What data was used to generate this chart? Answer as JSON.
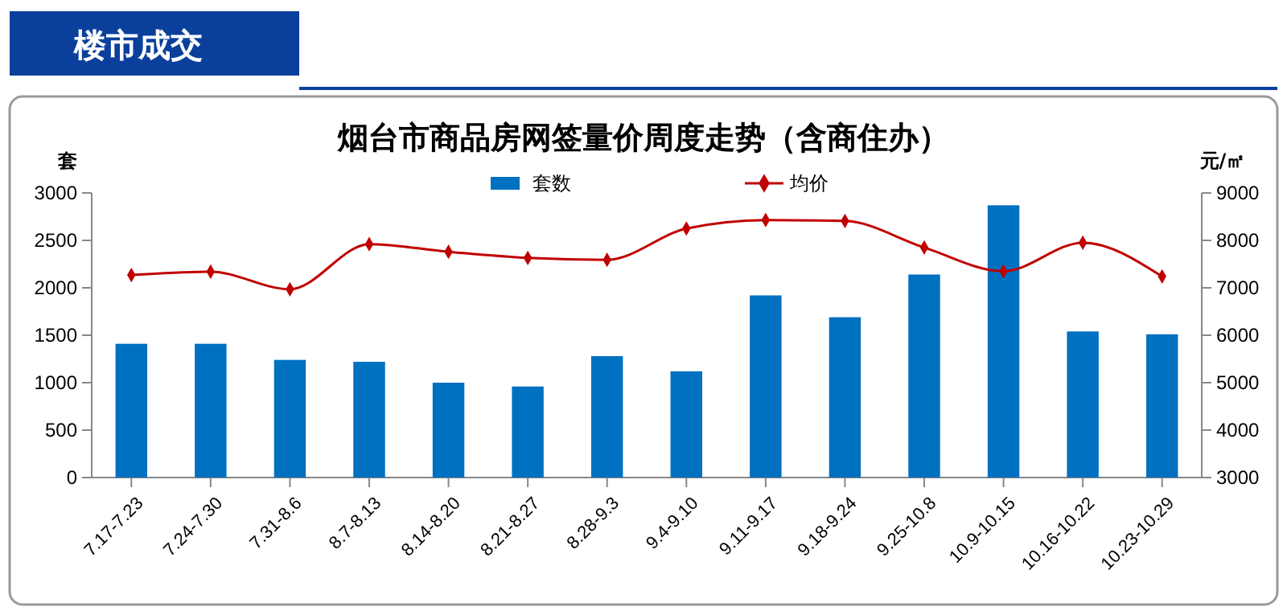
{
  "chart_data": {
    "type": "bar",
    "title": "烟台市商品房网签量价周度走势（含商住办）",
    "annotations": [
      "楼市成交"
    ],
    "ylabel": "套",
    "y2label": "元/㎡",
    "categories": [
      "7.17-7.23",
      "7.24-7.30",
      "7.31-8.6",
      "8.7-8.13",
      "8.14-8.20",
      "8.21-8.27",
      "8.28-9.3",
      "9.4-9.10",
      "9.11-9.17",
      "9.18-9.24",
      "9.25-10.8",
      "10.9-10.15",
      "10.16-10.22",
      "10.23-10.29"
    ],
    "series": [
      {
        "name": "套数",
        "color": "#0070c0",
        "values": [
          1410,
          1410,
          1240,
          1220,
          1000,
          960,
          1280,
          1120,
          1920,
          1690,
          2140,
          2870,
          1540,
          1510
        ]
      },
      {
        "name": "均价",
        "type": "line",
        "axis": "y2",
        "color": "#c00000",
        "marker": "diamond",
        "values": [
          7270,
          7340,
          6970,
          7920,
          7760,
          7630,
          7590,
          8250,
          8430,
          8410,
          7850,
          7350,
          7950,
          7240
        ]
      }
    ],
    "ylim": [
      0,
      3000
    ],
    "yticks": [
      0,
      500,
      1000,
      1500,
      2000,
      2500,
      3000
    ],
    "y2lim": [
      3000,
      9000
    ],
    "y2ticks": [
      3000,
      4000,
      5000,
      6000,
      7000,
      8000,
      9000
    ],
    "legend": "top",
    "grid": false
  }
}
